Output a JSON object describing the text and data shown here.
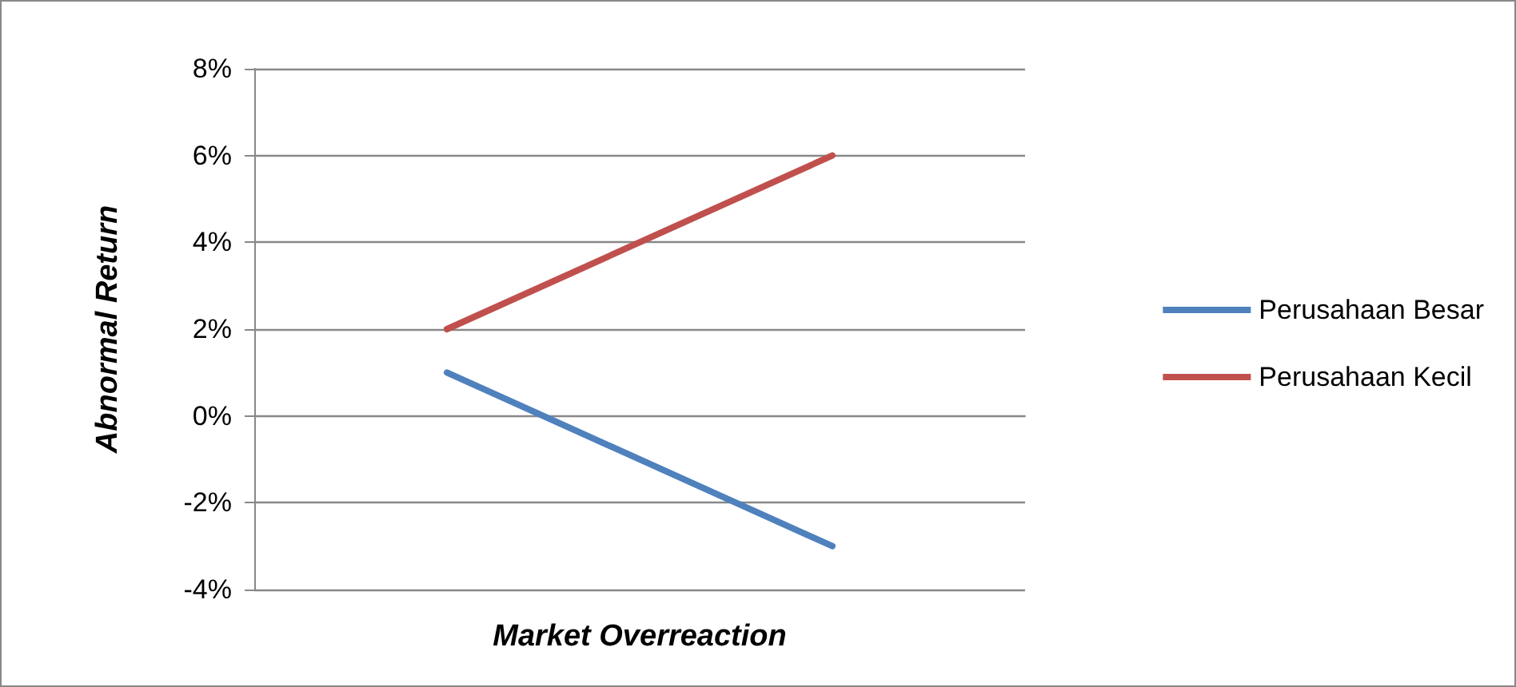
{
  "chart_data": {
    "type": "line",
    "xlabel": "Market Overreaction",
    "ylabel": "Abnormal Return",
    "categories": [
      null,
      null
    ],
    "series": [
      {
        "name": "Perusahaan Besar",
        "color": "#4f81bd",
        "values": [
          1,
          -3
        ]
      },
      {
        "name": "Perusahaan Kecil",
        "color": "#c0504d",
        "values": [
          2,
          6
        ]
      }
    ],
    "ylim": [
      -4,
      8
    ],
    "yticks": [
      {
        "value": -4,
        "label": "-4%"
      },
      {
        "value": -2,
        "label": "-2%"
      },
      {
        "value": 0,
        "label": "0%"
      },
      {
        "value": 2,
        "label": "2%"
      },
      {
        "value": 4,
        "label": "4%"
      },
      {
        "value": 6,
        "label": "6%"
      },
      {
        "value": 8,
        "label": "8%"
      }
    ],
    "grid": "y",
    "legend": "right",
    "marker": "none",
    "line_style": "solid"
  }
}
